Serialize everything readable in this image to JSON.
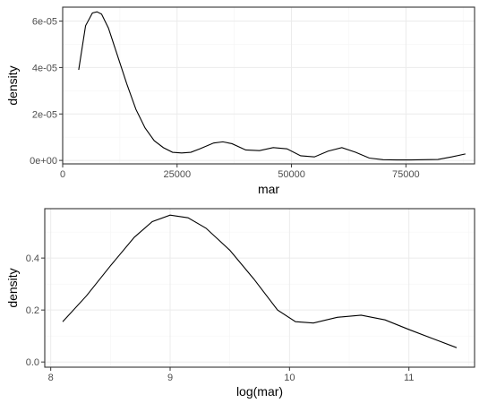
{
  "chart_data": [
    {
      "type": "line",
      "xlabel": "mar",
      "ylabel": "density",
      "xlim": [
        0,
        90000
      ],
      "ylim": [
        -1.5e-06,
        6.6e-05
      ],
      "x_ticks": [
        0,
        25000,
        50000,
        75000
      ],
      "x_tick_labels": [
        "0",
        "25000",
        "50000",
        "75000"
      ],
      "y_ticks": [
        0,
        2e-05,
        4e-05,
        6e-05
      ],
      "y_tick_labels": [
        "0e+00",
        "2e-05",
        "4e-05",
        "6e-05"
      ],
      "grid": true,
      "series": [
        {
          "x": [
            3500,
            5000,
            6500,
            7500,
            8500,
            10000,
            12000,
            14000,
            16000,
            18000,
            20000,
            22000,
            24000,
            26000,
            28000,
            30000,
            33000,
            35000,
            37000,
            40000,
            43000,
            46000,
            49000,
            52000,
            55000,
            58000,
            61000,
            64000,
            67000,
            70000,
            73000,
            76000,
            79000,
            82000,
            85000,
            88000
          ],
          "y": [
            3.9e-05,
            5.8e-05,
            6.35e-05,
            6.4e-05,
            6.3e-05,
            5.7e-05,
            4.5e-05,
            3.3e-05,
            2.2e-05,
            1.4e-05,
            8.5e-06,
            5.5e-06,
            3.5e-06,
            3.2e-06,
            3.5e-06,
            5e-06,
            7.5e-06,
            8e-06,
            7.2e-06,
            4.5e-06,
            4.2e-06,
            5.5e-06,
            5e-06,
            2e-06,
            1.5e-06,
            4e-06,
            5.5e-06,
            3.5e-06,
            1e-06,
            3e-07,
            2e-07,
            2e-07,
            3e-07,
            4e-07,
            1.5e-06,
            2.8e-06
          ]
        }
      ]
    },
    {
      "type": "line",
      "xlabel": "log(mar)",
      "ylabel": "density",
      "xlim": [
        7.95,
        11.55
      ],
      "ylim": [
        -0.02,
        0.59
      ],
      "x_ticks": [
        8,
        9,
        10,
        11
      ],
      "x_tick_labels": [
        "8",
        "9",
        "10",
        "11"
      ],
      "y_ticks": [
        0,
        0.2,
        0.4
      ],
      "y_tick_labels": [
        "0.0",
        "0.2",
        "0.4"
      ],
      "grid": true,
      "series": [
        {
          "x": [
            8.1,
            8.3,
            8.5,
            8.7,
            8.85,
            9.0,
            9.15,
            9.3,
            9.5,
            9.7,
            9.9,
            10.05,
            10.2,
            10.4,
            10.6,
            10.8,
            11.0,
            11.2,
            11.4
          ],
          "y": [
            0.155,
            0.255,
            0.37,
            0.48,
            0.54,
            0.565,
            0.555,
            0.515,
            0.43,
            0.32,
            0.2,
            0.155,
            0.15,
            0.172,
            0.18,
            0.162,
            0.125,
            0.09,
            0.055
          ]
        }
      ]
    }
  ]
}
